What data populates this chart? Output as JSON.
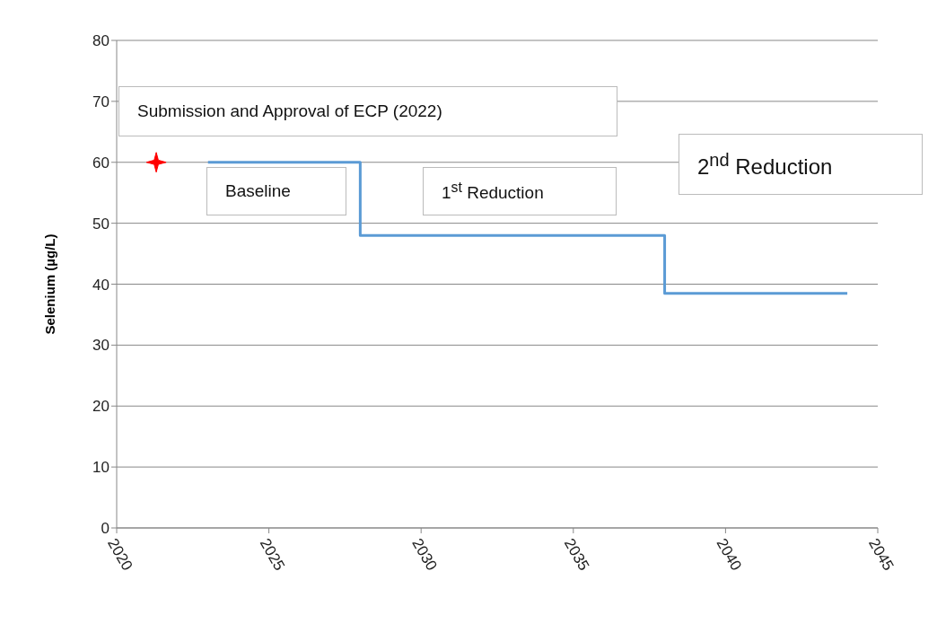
{
  "chart_data": {
    "type": "step",
    "ylabel": "Selenium (µg/L)",
    "xlim": [
      2020,
      2045
    ],
    "xticks": [
      2020,
      2025,
      2030,
      2035,
      2040,
      2045
    ],
    "ylim": [
      0,
      80
    ],
    "yticks": [
      0,
      10,
      20,
      30,
      40,
      50,
      60,
      70,
      80
    ],
    "grid": "y",
    "legend": false,
    "series": [
      {
        "color": "#5b9bd5",
        "x": [
          2023,
          2028,
          2038,
          2044
        ],
        "values": [
          60,
          48,
          38.5,
          38.5
        ]
      },
      {
        "type": "scatter",
        "color": "#ff0000",
        "marker": "star",
        "x": [
          2021.3
        ],
        "values": [
          60
        ]
      }
    ],
    "annotations": [
      "Submission and Approval of ECP (2022)",
      "Baseline",
      "1$^{st}$ Reduction",
      "2$^{nd}$ Reduction"
    ]
  }
}
